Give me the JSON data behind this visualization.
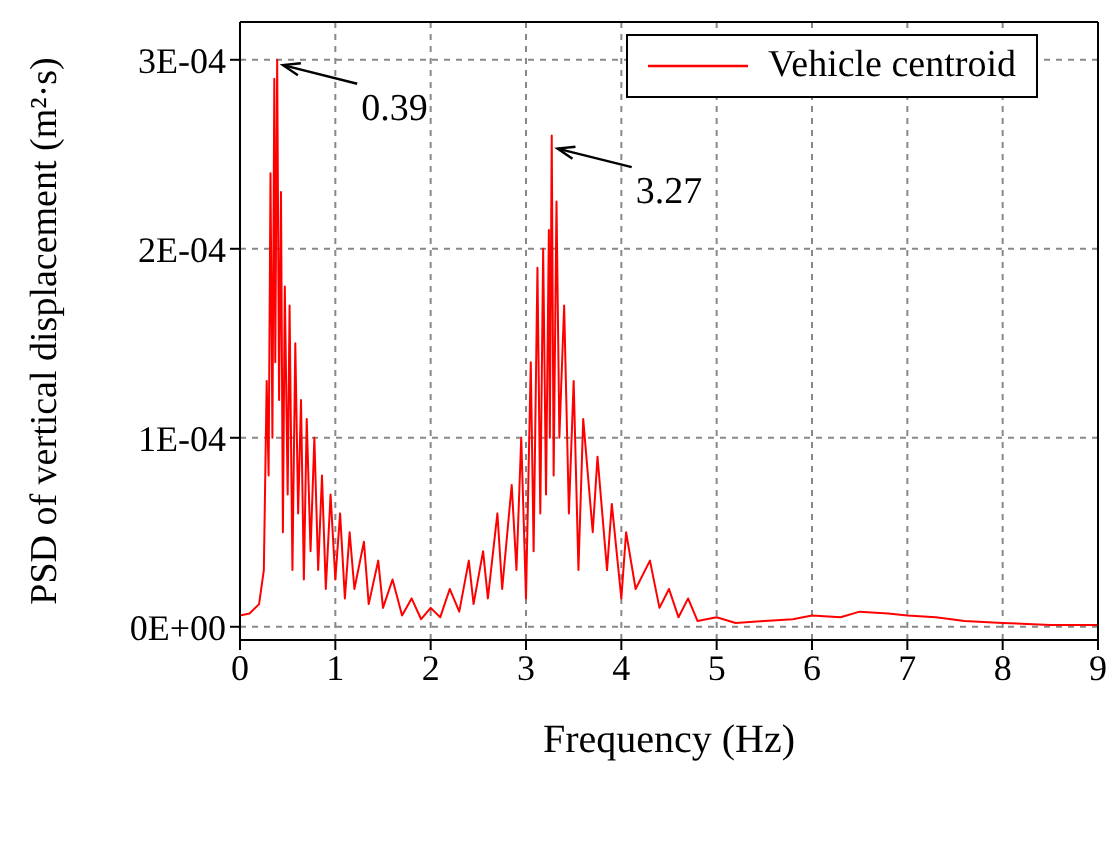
{
  "chart_data": {
    "type": "line",
    "xlabel": "Frequency (Hz)",
    "ylabel": "PSD of vertical displacement (m²·s)",
    "x": [
      0,
      0.1,
      0.2,
      0.25,
      0.28,
      0.3,
      0.32,
      0.34,
      0.36,
      0.37,
      0.39,
      0.41,
      0.43,
      0.45,
      0.47,
      0.5,
      0.52,
      0.55,
      0.58,
      0.61,
      0.64,
      0.67,
      0.7,
      0.74,
      0.78,
      0.82,
      0.86,
      0.9,
      0.95,
      1.0,
      1.05,
      1.1,
      1.15,
      1.2,
      1.3,
      1.35,
      1.45,
      1.5,
      1.6,
      1.7,
      1.8,
      1.9,
      2.0,
      2.1,
      2.2,
      2.3,
      2.4,
      2.45,
      2.55,
      2.6,
      2.7,
      2.75,
      2.85,
      2.9,
      2.95,
      3.0,
      3.05,
      3.08,
      3.12,
      3.15,
      3.18,
      3.21,
      3.24,
      3.25,
      3.27,
      3.29,
      3.32,
      3.35,
      3.4,
      3.45,
      3.5,
      3.55,
      3.6,
      3.7,
      3.75,
      3.85,
      3.9,
      4.0,
      4.05,
      4.15,
      4.3,
      4.4,
      4.5,
      4.6,
      4.7,
      4.8,
      5.0,
      5.2,
      5.5,
      5.8,
      6.0,
      6.3,
      6.5,
      6.8,
      7.0,
      7.3,
      7.6,
      8.0,
      8.5,
      9.0
    ],
    "series": [
      {
        "name": "Vehicle centroid",
        "color": "#ff0000",
        "values": [
          6e-06,
          7e-06,
          1.2e-05,
          3e-05,
          0.00013,
          8e-05,
          0.00024,
          0.0001,
          0.00029,
          0.00014,
          0.0003,
          0.00012,
          0.00023,
          5e-05,
          0.00018,
          7e-05,
          0.00017,
          3e-05,
          0.00015,
          6e-05,
          0.00012,
          2.5e-05,
          0.00011,
          4e-05,
          0.0001,
          3e-05,
          8e-05,
          2e-05,
          7e-05,
          2.5e-05,
          6e-05,
          1.5e-05,
          5e-05,
          2e-05,
          4.5e-05,
          1.2e-05,
          3.5e-05,
          1e-05,
          2.5e-05,
          6e-06,
          1.5e-05,
          4e-06,
          1e-05,
          5e-06,
          2e-05,
          8e-06,
          3.5e-05,
          1.2e-05,
          4e-05,
          1.5e-05,
          6e-05,
          2e-05,
          7.5e-05,
          3e-05,
          0.0001,
          1.5e-05,
          0.00014,
          4e-05,
          0.00019,
          6e-05,
          0.0002,
          7e-05,
          0.00021,
          0.0001,
          0.00026,
          8e-05,
          0.000225,
          0.0001,
          0.00017,
          6e-05,
          0.00013,
          3e-05,
          0.00011,
          5e-05,
          9e-05,
          3e-05,
          6.5e-05,
          1.5e-05,
          5e-05,
          2e-05,
          3.5e-05,
          1e-05,
          2e-05,
          5e-06,
          1.5e-05,
          3e-06,
          5e-06,
          2e-06,
          3e-06,
          4e-06,
          6e-06,
          5e-06,
          8e-06,
          7e-06,
          6e-06,
          5e-06,
          3e-06,
          2e-06,
          1e-06,
          1e-06
        ]
      }
    ],
    "xlim": [
      0,
      9
    ],
    "xticks": [
      0,
      1,
      2,
      3,
      4,
      5,
      6,
      7,
      8,
      9
    ],
    "ylim": [
      -7e-06,
      0.00032
    ],
    "yticks": [
      {
        "value": 0,
        "label": "0E+00"
      },
      {
        "value": 0.0001,
        "label": "1E-04"
      },
      {
        "value": 0.0002,
        "label": "2E-04"
      },
      {
        "value": 0.0003,
        "label": "3E-04"
      }
    ],
    "annotations": [
      {
        "text": "0.39",
        "x": 0.39,
        "y": 0.0003
      },
      {
        "text": "3.27",
        "x": 3.27,
        "y": 0.00026
      }
    ],
    "grid": true,
    "legend": "top right",
    "marker": "none",
    "line_style": "solid"
  }
}
